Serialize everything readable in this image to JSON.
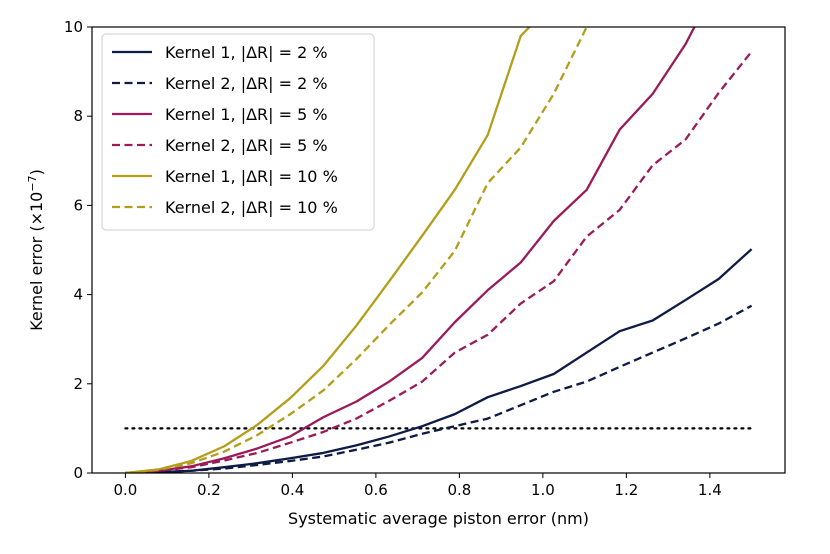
{
  "chart_data": {
    "type": "line",
    "xlabel": "Systematic average piston error (nm)",
    "ylabel_main": "Kernel error (×10",
    "ylabel_exp": "−7",
    "ylabel_close": ")",
    "xlim": [
      -0.08,
      1.58
    ],
    "ylim": [
      0,
      10
    ],
    "xticks": [
      0.0,
      0.2,
      0.4,
      0.6,
      0.8,
      1.0,
      1.2,
      1.4
    ],
    "xtick_labels": [
      "0.0",
      "0.2",
      "0.4",
      "0.6",
      "0.8",
      "1.0",
      "1.2",
      "1.4"
    ],
    "yticks": [
      0,
      2,
      4,
      6,
      8,
      10
    ],
    "ytick_labels": [
      "0",
      "2",
      "4",
      "6",
      "8",
      "10"
    ],
    "legend_position": "top-left",
    "threshold": {
      "y": 1.0,
      "style": "dotted",
      "color": "#000000"
    },
    "series": [
      {
        "name": "Kernel 1, |ΔR| = 2 %",
        "color": "#0d1b45",
        "dash": "solid",
        "x": [
          0,
          0.079,
          0.158,
          0.237,
          0.316,
          0.395,
          0.474,
          0.553,
          0.632,
          0.711,
          0.789,
          0.868,
          0.947,
          1.026,
          1.105,
          1.184,
          1.263,
          1.342,
          1.421,
          1.5
        ],
        "y": [
          0,
          0.02,
          0.05,
          0.13,
          0.22,
          0.33,
          0.45,
          0.62,
          0.82,
          1.05,
          1.32,
          1.7,
          1.95,
          2.22,
          2.7,
          3.18,
          3.42,
          3.88,
          4.35,
          5.02
        ]
      },
      {
        "name": "Kernel 2, |ΔR| = 2 %",
        "color": "#0d1b45",
        "dash": "dashed",
        "x": [
          0,
          0.079,
          0.158,
          0.237,
          0.316,
          0.395,
          0.474,
          0.553,
          0.632,
          0.711,
          0.789,
          0.868,
          0.947,
          1.026,
          1.105,
          1.184,
          1.263,
          1.342,
          1.421,
          1.5
        ],
        "y": [
          0,
          0.02,
          0.05,
          0.1,
          0.18,
          0.27,
          0.37,
          0.52,
          0.68,
          0.88,
          1.05,
          1.22,
          1.52,
          1.82,
          2.05,
          2.38,
          2.7,
          3.02,
          3.35,
          3.75
        ]
      },
      {
        "name": "Kernel 1, |ΔR| = 5 %",
        "color": "#9b1b5a",
        "dash": "solid",
        "x": [
          0,
          0.079,
          0.158,
          0.237,
          0.316,
          0.395,
          0.474,
          0.553,
          0.632,
          0.711,
          0.789,
          0.868,
          0.947,
          1.026,
          1.105,
          1.184,
          1.263,
          1.342,
          1.363
        ],
        "y": [
          0,
          0.05,
          0.15,
          0.33,
          0.55,
          0.82,
          1.25,
          1.6,
          2.05,
          2.58,
          3.38,
          4.1,
          4.72,
          5.65,
          6.35,
          7.7,
          8.5,
          9.62,
          10.0
        ]
      },
      {
        "name": "Kernel 2, |ΔR| = 5 %",
        "color": "#9b1b5a",
        "dash": "dashed",
        "x": [
          0,
          0.079,
          0.158,
          0.237,
          0.316,
          0.395,
          0.474,
          0.553,
          0.632,
          0.711,
          0.789,
          0.868,
          0.947,
          1.026,
          1.105,
          1.184,
          1.263,
          1.342,
          1.421,
          1.5
        ],
        "y": [
          0,
          0.05,
          0.13,
          0.28,
          0.45,
          0.68,
          0.92,
          1.22,
          1.62,
          2.05,
          2.7,
          3.1,
          3.8,
          4.3,
          5.3,
          5.9,
          6.9,
          7.48,
          8.52,
          9.45
        ]
      },
      {
        "name": "Kernel 1, |ΔR| = 10 %",
        "color": "#b39e1a",
        "dash": "solid",
        "x": [
          0,
          0.079,
          0.158,
          0.237,
          0.316,
          0.395,
          0.474,
          0.553,
          0.632,
          0.711,
          0.789,
          0.868,
          0.947,
          0.968
        ],
        "y": [
          0,
          0.08,
          0.27,
          0.6,
          1.08,
          1.68,
          2.4,
          3.3,
          4.3,
          5.32,
          6.35,
          7.58,
          9.8,
          10.0
        ]
      },
      {
        "name": "Kernel 2, |ΔR| = 10 %",
        "color": "#b39e1a",
        "dash": "dashed",
        "x": [
          0,
          0.079,
          0.158,
          0.237,
          0.316,
          0.395,
          0.474,
          0.553,
          0.632,
          0.711,
          0.789,
          0.868,
          0.947,
          1.026,
          1.105
        ],
        "y": [
          0,
          0.07,
          0.22,
          0.48,
          0.85,
          1.32,
          1.85,
          2.55,
          3.32,
          4.05,
          4.98,
          6.5,
          7.3,
          8.5,
          10.0
        ]
      }
    ]
  }
}
